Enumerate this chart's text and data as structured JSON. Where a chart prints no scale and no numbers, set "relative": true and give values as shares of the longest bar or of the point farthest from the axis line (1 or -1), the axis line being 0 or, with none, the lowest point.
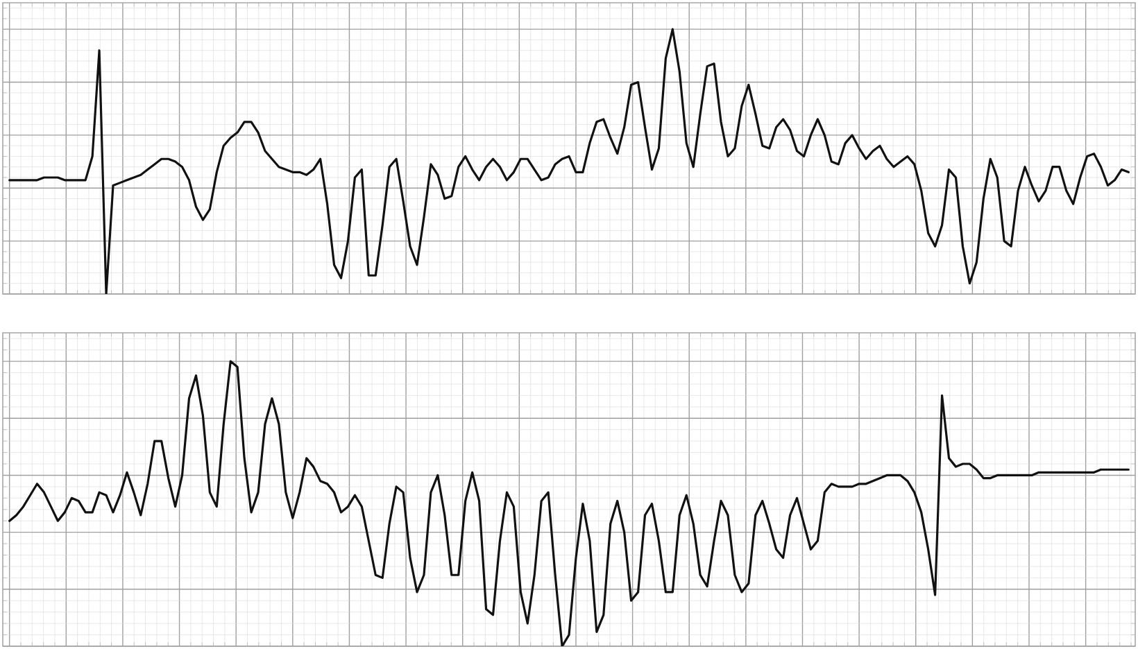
{
  "chart_data": [
    {
      "type": "line",
      "relative": true,
      "grid": true,
      "tick_labels": false,
      "color": "#111111",
      "categories": [
        null,
        null,
        null,
        null,
        null,
        null,
        null,
        null,
        null,
        null,
        null,
        null,
        null,
        null,
        null,
        null,
        null,
        null,
        null,
        null,
        null,
        null,
        null,
        null,
        null,
        null,
        null,
        null,
        null,
        null,
        null,
        null,
        null,
        null,
        null,
        null,
        null,
        null,
        null,
        null,
        null,
        null,
        null,
        null,
        null,
        null,
        null,
        null,
        null,
        null,
        null,
        null,
        null,
        null,
        null,
        null,
        null,
        null,
        null,
        null,
        null,
        null,
        null,
        null,
        null,
        null,
        null,
        null,
        null,
        null,
        null,
        null,
        null,
        null,
        null,
        null,
        null,
        null,
        null,
        null,
        null,
        null,
        null,
        null,
        null,
        null,
        null,
        null,
        null,
        null,
        null,
        null,
        null,
        null,
        null,
        null,
        null,
        null,
        null,
        null,
        null,
        null,
        null,
        null,
        null,
        null,
        null,
        null,
        null,
        null,
        null,
        null,
        null,
        null,
        null,
        null,
        null,
        null,
        null,
        null,
        null,
        null,
        null,
        null,
        null,
        null,
        null,
        null,
        null,
        null,
        null,
        null,
        null,
        null,
        null,
        null,
        null,
        null,
        null,
        null,
        null,
        null,
        null,
        null,
        null,
        null,
        null,
        null,
        null,
        null,
        null,
        null,
        null,
        null,
        null,
        null,
        null,
        null,
        null,
        null,
        null,
        null,
        null
      ],
      "values": [
        0.43,
        0.43,
        0.43,
        0.43,
        0.43,
        0.44,
        0.44,
        0.44,
        0.43,
        0.43,
        0.43,
        0.43,
        0.52,
        0.92,
        0,
        0.41,
        0.42,
        0.43,
        0.44,
        0.45,
        0.47,
        0.49,
        0.51,
        0.51,
        0.5,
        0.48,
        0.43,
        0.33,
        0.28,
        0.32,
        0.46,
        0.56,
        0.59,
        0.61,
        0.65,
        0.65,
        0.61,
        0.54,
        0.51,
        0.48,
        0.47,
        0.46,
        0.46,
        0.45,
        0.47,
        0.51,
        0.34,
        0.11,
        0.06,
        0.2,
        0.44,
        0.47,
        0.07,
        0.07,
        0.26,
        0.48,
        0.51,
        0.35,
        0.18,
        0.11,
        0.29,
        0.49,
        0.45,
        0.36,
        0.37,
        0.48,
        0.52,
        0.47,
        0.43,
        0.48,
        0.51,
        0.48,
        0.43,
        0.46,
        0.51,
        0.51,
        0.47,
        0.43,
        0.44,
        0.49,
        0.51,
        0.52,
        0.46,
        0.46,
        0.57,
        0.65,
        0.66,
        0.59,
        0.53,
        0.63,
        0.79,
        0.8,
        0.63,
        0.47,
        0.55,
        0.89,
        1,
        0.84,
        0.57,
        0.48,
        0.68,
        0.86,
        0.87,
        0.65,
        0.52,
        0.55,
        0.71,
        0.79,
        0.68,
        0.56,
        0.55,
        0.63,
        0.66,
        0.62,
        0.54,
        0.52,
        0.6,
        0.66,
        0.6,
        0.5,
        0.49,
        0.57,
        0.6,
        0.55,
        0.51,
        0.54,
        0.56,
        0.51,
        0.48,
        0.5,
        0.52,
        0.49,
        0.39,
        0.23,
        0.18,
        0.26,
        0.47,
        0.44,
        0.18,
        0.04,
        0.12,
        0.36,
        0.51,
        0.44,
        0.2,
        0.18,
        0.39,
        0.48,
        0.41,
        0.35,
        0.39,
        0.48,
        0.48,
        0.39,
        0.34,
        0.44,
        0.52,
        0.53,
        0.48,
        0.41,
        0.43,
        0.47,
        0.46
      ]
    },
    {
      "type": "line",
      "relative": true,
      "grid": true,
      "tick_labels": false,
      "color": "#111111",
      "categories": [
        null,
        null,
        null,
        null,
        null,
        null,
        null,
        null,
        null,
        null,
        null,
        null,
        null,
        null,
        null,
        null,
        null,
        null,
        null,
        null,
        null,
        null,
        null,
        null,
        null,
        null,
        null,
        null,
        null,
        null,
        null,
        null,
        null,
        null,
        null,
        null,
        null,
        null,
        null,
        null,
        null,
        null,
        null,
        null,
        null,
        null,
        null,
        null,
        null,
        null,
        null,
        null,
        null,
        null,
        null,
        null,
        null,
        null,
        null,
        null,
        null,
        null,
        null,
        null,
        null,
        null,
        null,
        null,
        null,
        null,
        null,
        null,
        null,
        null,
        null,
        null,
        null,
        null,
        null,
        null,
        null,
        null,
        null,
        null,
        null,
        null,
        null,
        null,
        null,
        null,
        null,
        null,
        null,
        null,
        null,
        null,
        null,
        null,
        null,
        null,
        null,
        null,
        null,
        null,
        null,
        null,
        null,
        null,
        null,
        null,
        null,
        null,
        null,
        null,
        null,
        null,
        null,
        null,
        null,
        null,
        null,
        null,
        null,
        null,
        null,
        null,
        null,
        null,
        null,
        null,
        null,
        null,
        null,
        null,
        null,
        null,
        null,
        null,
        null,
        null,
        null,
        null,
        null,
        null,
        null,
        null,
        null,
        null,
        null,
        null,
        null,
        null,
        null,
        null,
        null,
        null,
        null,
        null,
        null,
        null,
        null,
        null,
        null
      ],
      "values": [
        0.44,
        0.46,
        0.49,
        0.53,
        0.57,
        0.54,
        0.49,
        0.44,
        0.47,
        0.52,
        0.51,
        0.47,
        0.47,
        0.54,
        0.53,
        0.47,
        0.53,
        0.61,
        0.54,
        0.46,
        0.57,
        0.72,
        0.72,
        0.59,
        0.49,
        0.6,
        0.87,
        0.95,
        0.81,
        0.54,
        0.49,
        0.78,
        1,
        0.98,
        0.66,
        0.47,
        0.54,
        0.78,
        0.87,
        0.78,
        0.54,
        0.45,
        0.54,
        0.66,
        0.63,
        0.58,
        0.57,
        0.54,
        0.47,
        0.49,
        0.53,
        0.49,
        0.37,
        0.25,
        0.24,
        0.43,
        0.56,
        0.54,
        0.31,
        0.19,
        0.25,
        0.54,
        0.6,
        0.46,
        0.25,
        0.25,
        0.51,
        0.61,
        0.51,
        0.13,
        0.11,
        0.37,
        0.54,
        0.49,
        0.19,
        0.08,
        0.25,
        0.51,
        0.54,
        0.25,
        0,
        0.04,
        0.31,
        0.5,
        0.37,
        0.05,
        0.11,
        0.43,
        0.51,
        0.4,
        0.16,
        0.19,
        0.46,
        0.5,
        0.37,
        0.19,
        0.19,
        0.46,
        0.53,
        0.43,
        0.25,
        0.21,
        0.37,
        0.51,
        0.46,
        0.25,
        0.19,
        0.22,
        0.46,
        0.51,
        0.43,
        0.34,
        0.31,
        0.46,
        0.52,
        0.43,
        0.34,
        0.37,
        0.54,
        0.57,
        0.56,
        0.56,
        0.56,
        0.57,
        0.57,
        0.58,
        0.59,
        0.6,
        0.6,
        0.6,
        0.58,
        0.54,
        0.47,
        0.34,
        0.18,
        0.88,
        0.66,
        0.63,
        0.64,
        0.64,
        0.62,
        0.59,
        0.59,
        0.6,
        0.6,
        0.6,
        0.6,
        0.6,
        0.6,
        0.61,
        0.61,
        0.61,
        0.61,
        0.61,
        0.61,
        0.61,
        0.61,
        0.61,
        0.62,
        0.62,
        0.62,
        0.62,
        0.62
      ]
    }
  ]
}
